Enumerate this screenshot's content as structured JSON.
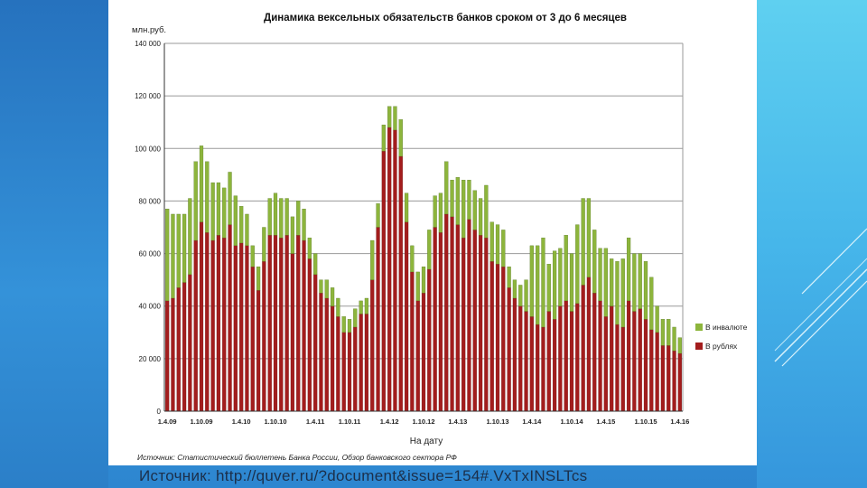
{
  "colors": {
    "rubles": "#a31d1d",
    "currency": "#8db53c",
    "grid": "#9a9a9a",
    "axis": "#333333"
  },
  "source_caption": "Источник: http://quver.ru/?document&issue=154#.VxTxINSLTcs",
  "chart_data": {
    "type": "bar",
    "stacked": true,
    "title": "Динамика вексельных обязательств банков сроком от 3 до 6 месяцев",
    "ylabel": "млн.руб.",
    "xlabel": "На дату",
    "ylim": [
      0,
      140000
    ],
    "yticks": [
      "0",
      "20 000",
      "40 000",
      "60 000",
      "80 000",
      "100 000",
      "120 000",
      "140 000"
    ],
    "xtick_labels": [
      "1.4.09",
      "1.10.09",
      "1.4.10",
      "1.10.10",
      "1.4.11",
      "1.10.11",
      "1.4.12",
      "1.10.12",
      "1.4.13",
      "1.10.13",
      "1.4.14",
      "1.10.14",
      "1.4.15",
      "1.10.15",
      "1.4.16"
    ],
    "source_note": "Источник: Статистический бюллетень Банка России, Обзор банковского сектора РФ",
    "series": [
      {
        "name": "В инвалюте",
        "color": "#8db53c",
        "values": [
          35000,
          32000,
          28000,
          26000,
          29000,
          30000,
          29000,
          27000,
          22000,
          20000,
          19000,
          20000,
          19000,
          14000,
          12000,
          8000,
          9000,
          13000,
          14000,
          16000,
          15000,
          14000,
          14000,
          13000,
          12000,
          8000,
          8000,
          5000,
          7000,
          7000,
          7000,
          6000,
          5000,
          7000,
          5000,
          6000,
          15000,
          9000,
          10000,
          8000,
          9000,
          14000,
          11000,
          10000,
          11000,
          10000,
          15000,
          12000,
          15000,
          20000,
          14000,
          18000,
          22000,
          15000,
          15000,
          14000,
          20000,
          15000,
          15000,
          14000,
          8000,
          7000,
          8000,
          12000,
          27000,
          30000,
          34000,
          18000,
          26000,
          22000,
          25000,
          22000,
          30000,
          33000,
          30000,
          24000,
          20000,
          26000,
          18000,
          24000,
          26000,
          24000,
          22000,
          21000,
          22000,
          20000,
          10000,
          10000,
          10000,
          9000,
          6000
        ]
      },
      {
        "name": "В рублях",
        "color": "#a31d1d",
        "values": [
          42000,
          43000,
          47000,
          49000,
          52000,
          65000,
          72000,
          68000,
          65000,
          67000,
          66000,
          71000,
          63000,
          64000,
          63000,
          55000,
          46000,
          57000,
          67000,
          67000,
          66000,
          67000,
          60000,
          67000,
          65000,
          58000,
          52000,
          45000,
          43000,
          40000,
          36000,
          30000,
          30000,
          32000,
          37000,
          37000,
          50000,
          70000,
          99000,
          108000,
          107000,
          97000,
          72000,
          53000,
          42000,
          45000,
          54000,
          70000,
          68000,
          75000,
          74000,
          71000,
          66000,
          73000,
          69000,
          67000,
          66000,
          57000,
          56000,
          55000,
          47000,
          43000,
          40000,
          38000,
          36000,
          33000,
          32000,
          38000,
          35000,
          40000,
          42000,
          38000,
          41000,
          48000,
          51000,
          45000,
          42000,
          36000,
          40000,
          33000,
          32000,
          42000,
          38000,
          39000,
          35000,
          31000,
          30000,
          25000,
          25000,
          23000,
          22000
        ]
      }
    ]
  }
}
